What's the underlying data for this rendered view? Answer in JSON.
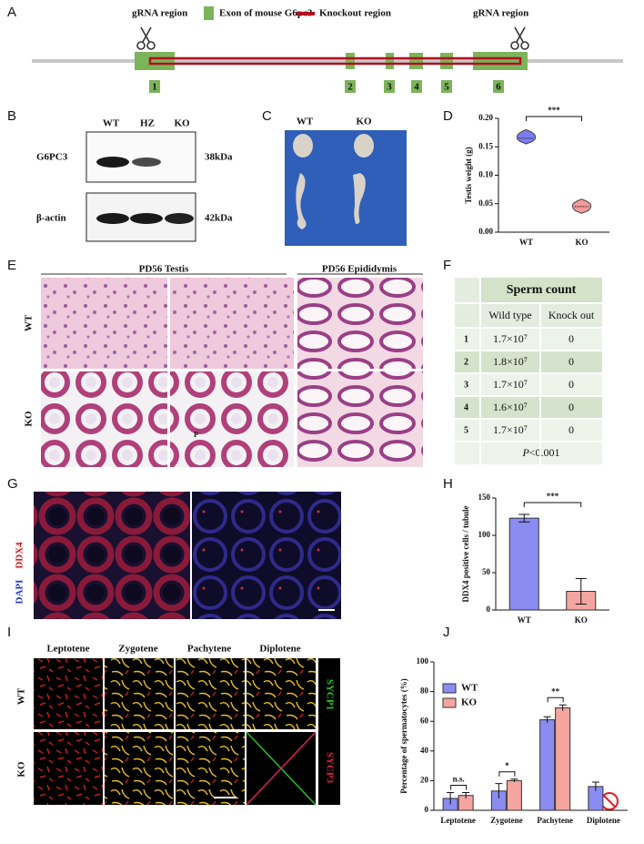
{
  "panel_letters": [
    "A",
    "B",
    "C",
    "D",
    "E",
    "F",
    "G",
    "H",
    "I",
    "J"
  ],
  "panel_a": {
    "legend": [
      "gRNA region",
      "Exon of mouse G6pc3",
      "Knockout region"
    ],
    "grna_labels": [
      "gRNA region",
      "gRNA region"
    ],
    "exons": [
      "1",
      "2",
      "3",
      "4",
      "5",
      "6"
    ]
  },
  "panel_b": {
    "lanes": [
      "WT",
      "HZ",
      "KO"
    ],
    "proteins": [
      "G6PC3",
      "β-actin"
    ],
    "sizes": [
      "38kDa",
      "42kDa"
    ]
  },
  "panel_c": {
    "labels": [
      "WT",
      "KO"
    ]
  },
  "panel_e": {
    "headers": [
      "PD56 Testis",
      "PD56 Epididymis"
    ],
    "rows": [
      "WT",
      "KO"
    ],
    "annotation": "P"
  },
  "panel_f": {
    "title": "Sperm count",
    "columns": [
      "Wild type",
      "Knock out"
    ],
    "rows": [
      [
        "1",
        "1.7×10⁷",
        "0"
      ],
      [
        "2",
        "1.8×10⁷",
        "0"
      ],
      [
        "3",
        "1.7×10⁷",
        "0"
      ],
      [
        "4",
        "1.6×10⁷",
        "0"
      ],
      [
        "5",
        "1.7×10⁷",
        "0"
      ]
    ],
    "statistic": "P",
    "threshold": "<0.001"
  },
  "panel_g": {
    "columns": [
      "WT",
      "KO"
    ],
    "stains": [
      "DDX4",
      "DAPI"
    ]
  },
  "panel_i": {
    "stages": [
      "Leptotene",
      "Zygotene",
      "Pachytene",
      "Diplotene"
    ],
    "rows": [
      "WT",
      "KO"
    ],
    "stains": [
      "SYCP1",
      "SYCP3"
    ]
  },
  "chart_data": [
    {
      "type": "violin",
      "ylabel": "Testis weight (g)",
      "categories": [
        "WT",
        "KO"
      ],
      "values": [
        0.165,
        0.045
      ],
      "min": [
        0.155,
        0.033
      ],
      "max": [
        0.18,
        0.058
      ],
      "colors": [
        "#7c7cf2",
        "#f39a9a"
      ],
      "ylim": [
        0,
        0.2
      ],
      "yticks": [
        {
          "value": 0,
          "label": "0.00"
        },
        {
          "value": 0.05,
          "label": "0.05"
        },
        {
          "value": 0.1,
          "label": "0.10"
        },
        {
          "value": 0.15,
          "label": "0.15"
        },
        {
          "value": 0.2,
          "label": "0.20"
        }
      ],
      "annotation": "***"
    },
    {
      "type": "bar",
      "ylabel": "DDX4 positive cells / tubule",
      "categories": [
        "WT",
        "KO"
      ],
      "values": [
        123,
        25
      ],
      "errors": [
        5,
        17
      ],
      "colors": [
        "#8a8cf2",
        "#f5a5a0"
      ],
      "ylim": [
        0,
        150
      ],
      "yticks": [
        0,
        50,
        100,
        150
      ],
      "annotation": "***"
    },
    {
      "type": "grouped-bar",
      "ylabel": "Percentage of spermatocytes (%)",
      "categories": [
        "Leptotene",
        "Zygotene",
        "Pachytene",
        "Diplotene"
      ],
      "series": [
        {
          "name": "WT",
          "color": "#8a8cf2",
          "values": [
            8,
            13,
            61,
            16
          ],
          "errors": [
            4,
            5,
            2,
            3
          ]
        },
        {
          "name": "KO",
          "color": "#f5a5a0",
          "values": [
            10,
            20,
            69,
            null
          ],
          "errors": [
            2,
            1,
            2,
            null
          ]
        }
      ],
      "ylim": [
        0,
        100
      ],
      "yticks": [
        0,
        20,
        40,
        60,
        80,
        100
      ],
      "annotations": [
        "n.s.",
        "*",
        "**"
      ]
    }
  ]
}
